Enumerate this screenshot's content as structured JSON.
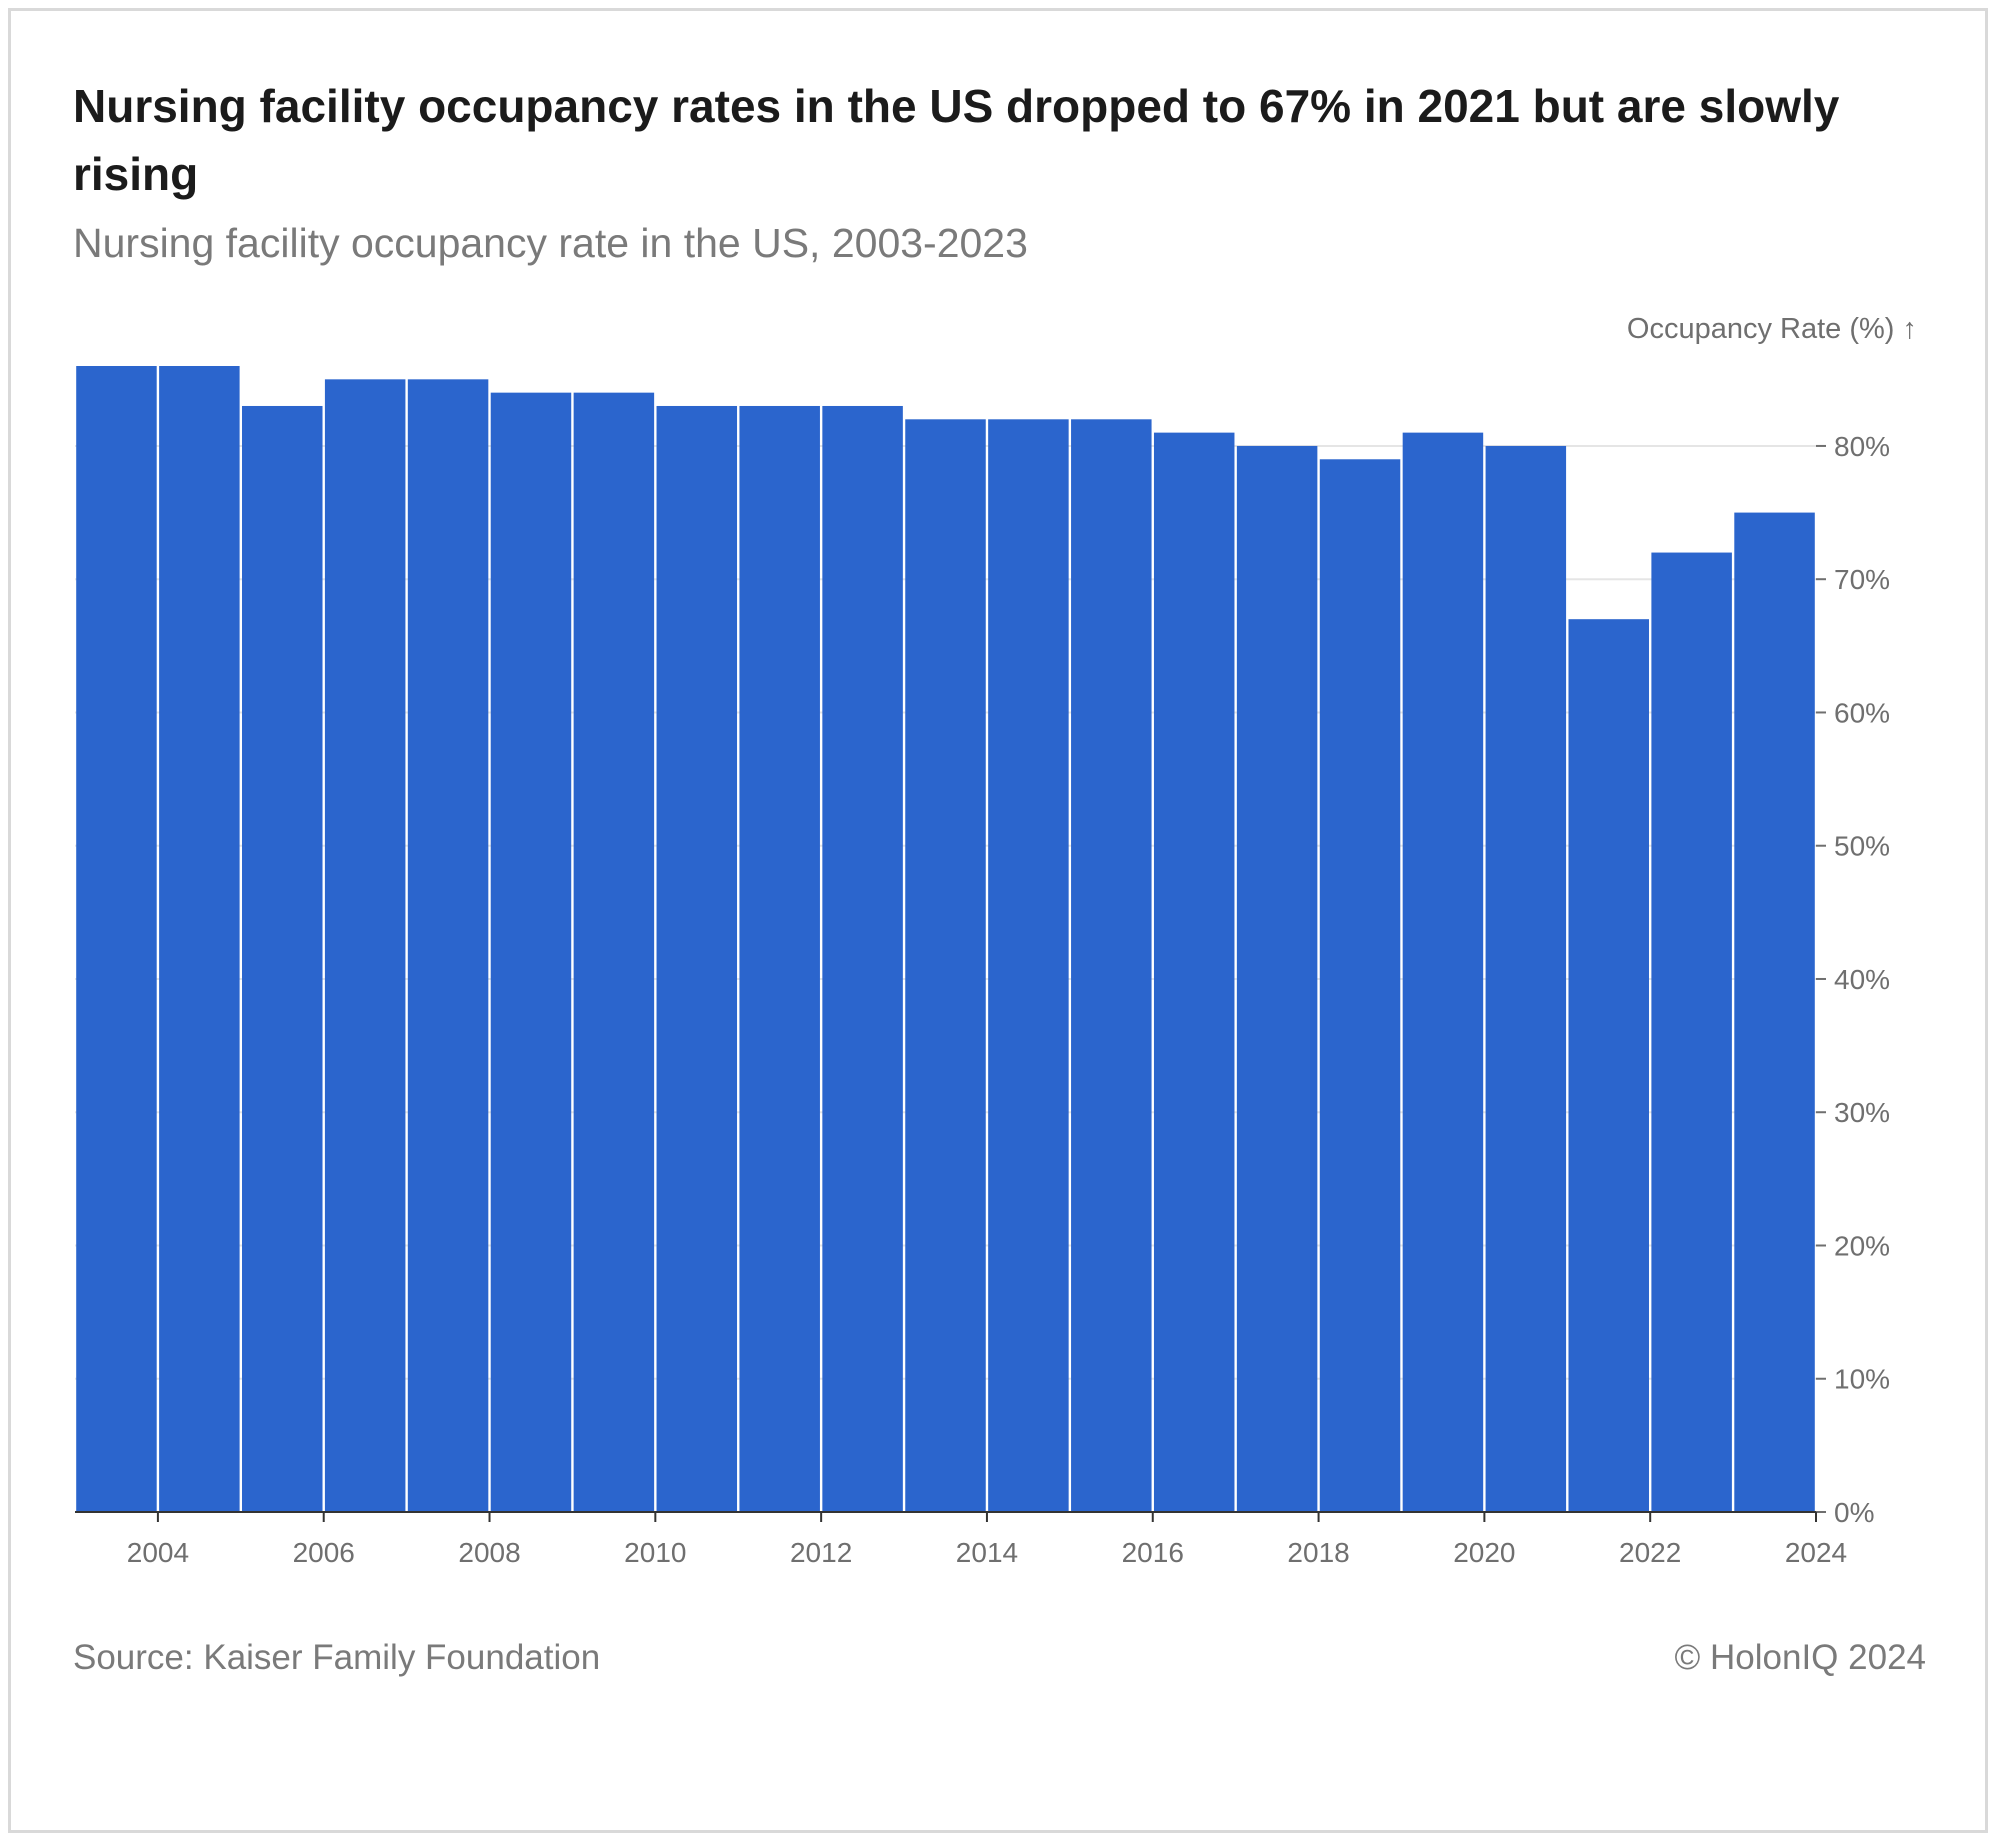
{
  "header": {
    "title": "Nursing facility occupancy rates in the US dropped to 67% in 2021 but are slowly rising",
    "subtitle": "Nursing facility occupancy rate in the US, 2003-2023"
  },
  "footer": {
    "source": "Source: Kaiser Family Foundation",
    "copyright": "© HolonIQ 2024"
  },
  "colors": {
    "bar": "#2b65cd",
    "grid": "#e5e5e5",
    "axis_text": "#6f6f6f",
    "axis_line": "#333333"
  },
  "chart_data": {
    "type": "bar",
    "ylabel": "Occupancy Rate (%) ↑",
    "x": [
      2003,
      2004,
      2005,
      2006,
      2007,
      2008,
      2009,
      2010,
      2011,
      2012,
      2013,
      2014,
      2015,
      2016,
      2017,
      2018,
      2019,
      2020,
      2021,
      2022,
      2023
    ],
    "values": [
      86,
      86,
      83,
      85,
      85,
      84,
      84,
      83,
      83,
      83,
      82,
      82,
      82,
      81,
      80,
      79,
      81,
      80,
      67,
      72,
      75
    ],
    "xlim": [
      2003,
      2024
    ],
    "ylim": [
      0,
      86
    ],
    "x_ticks": [
      "2004",
      "2006",
      "2008",
      "2010",
      "2012",
      "2014",
      "2016",
      "2018",
      "2020",
      "2022",
      "2024"
    ],
    "y_ticks": [
      "0%",
      "10%",
      "20%",
      "30%",
      "40%",
      "50%",
      "60%",
      "70%",
      "80%"
    ],
    "y_axis_position": "right",
    "grid": true
  }
}
